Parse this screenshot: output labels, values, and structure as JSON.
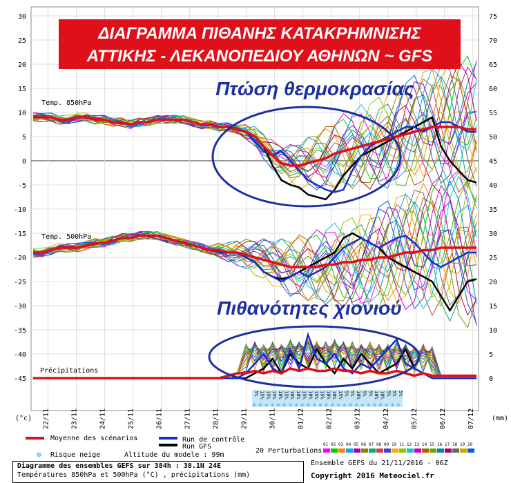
{
  "banner": {
    "line1": "ΔΙΑΓΡΑΜΜΑ ΠΙΘΑΝΗΣ ΚΑΤΑΚΡΗΜΝΙΣΗΣ",
    "line2": "ΑΤΤΙΚΗΣ - ΛΕΚΑΝΟΠΕΔΙΟΥ ΑΘΗΝΩΝ ~ GFS",
    "bg_color": "#e0101a"
  },
  "annotations": {
    "temp_drop": "Πτώση θερμοκρασίας",
    "snow_prob": "Πιθανότητες χιονιού",
    "color": "#1e2fa0"
  },
  "panel_labels": {
    "t850": "Temp. 850hPa",
    "t500": "Temp. 500hPa",
    "precip": "Précipitations"
  },
  "legend": {
    "mean": "Moyenne des scénarios",
    "control": "Run de contrôle",
    "gfs": "Run GFS",
    "snow_risk": "Risque neige",
    "altitude": "Altitude du modele : 99m",
    "perturbations": "20 Perturbations",
    "pert_ids": [
      "01",
      "02",
      "03",
      "04",
      "05",
      "06",
      "07",
      "08",
      "09",
      "10",
      "11",
      "12",
      "13",
      "14",
      "15",
      "16",
      "17",
      "18",
      "19",
      "20"
    ]
  },
  "footer": {
    "line1": "Diagramme des ensembles GEFS sur 384h : 38.1N 24E",
    "line2": "Températures 850hPa et 500hPa (°C) , précipitations (mm)",
    "ensemble": "Ensemble GEFS du 21/11/2016 - 06Z",
    "copyright": "Copyright 2016 Meteociel.fr"
  },
  "chart_data": {
    "type": "line",
    "left_axis_unit": "(°c)",
    "right_axis_unit": "(mm)",
    "left_ticks": [
      30,
      25,
      20,
      15,
      10,
      5,
      0,
      -5,
      -10,
      -15,
      -20,
      -25,
      -30,
      -35,
      -40,
      -45
    ],
    "right_ticks": [
      75,
      70,
      65,
      60,
      55,
      50,
      45,
      40,
      35,
      30,
      25,
      20,
      15,
      10,
      5,
      0
    ],
    "x_labels": [
      "22/11",
      "23/11",
      "24/11",
      "25/11",
      "26/11",
      "27/11",
      "28/11",
      "29/11",
      "30/11",
      "01/12",
      "02/12",
      "03/12",
      "04/12",
      "05/12",
      "06/12",
      "07/12"
    ],
    "snow_risk_pct": [
      "5%",
      "15%",
      "15%",
      "15%",
      "10%",
      "15%",
      "10%",
      "10%",
      "15%",
      "10%",
      "15%",
      "15%",
      "10%",
      "10%",
      "15%",
      "5%",
      "5%",
      "10%",
      "5%",
      "5%",
      "10%",
      "10%",
      "5%",
      "5%",
      "5%"
    ],
    "series": [
      {
        "name": "Moyenne des scénarios",
        "color": "#e0101a",
        "t850": [
          9,
          9,
          9,
          8.5,
          8.5,
          9,
          9,
          8.5,
          8.5,
          8,
          8,
          7.5,
          8,
          8,
          8.5,
          8.5,
          8.5,
          8.5,
          8,
          7.5,
          7.5,
          7,
          7,
          6.5,
          6,
          5,
          3,
          1,
          -0.5,
          -1,
          -1,
          -0.5,
          0,
          0.5,
          1.5,
          2,
          2.5,
          3,
          3.5,
          4,
          4.5,
          5,
          5.5,
          6,
          6.5,
          7,
          7,
          7,
          7,
          6.5,
          6.5
        ],
        "t500": [
          -19,
          -19,
          -18.5,
          -18,
          -18,
          -18,
          -17.5,
          -17,
          -17,
          -16.5,
          -16,
          -16,
          -15.5,
          -15.5,
          -15.5,
          -16,
          -16.5,
          -17,
          -17.5,
          -18,
          -18.5,
          -18.5,
          -19,
          -19,
          -19.5,
          -20,
          -20.5,
          -21,
          -21.5,
          -22,
          -22,
          -22,
          -22,
          -21.5,
          -21.5,
          -21,
          -21,
          -20.5,
          -20.5,
          -20,
          -20,
          -19.5,
          -19,
          -19,
          -18.5,
          -18.5,
          -18,
          -18,
          -18,
          -18,
          -18
        ],
        "precip": [
          0,
          0,
          0,
          0,
          0,
          0,
          0,
          0,
          0,
          0,
          0,
          0,
          0,
          0,
          0,
          0,
          0,
          0,
          0,
          0,
          0,
          0,
          0.5,
          1,
          1,
          1.5,
          1,
          1.5,
          1,
          2,
          1.5,
          2,
          1.5,
          1.5,
          2,
          1.5,
          1.5,
          1,
          1.5,
          1,
          1,
          1.5,
          1,
          0.5,
          1,
          0.5,
          0.5,
          0.5,
          0.5,
          0.5,
          0.5
        ]
      },
      {
        "name": "Run de contrôle",
        "color": "#1030d0",
        "t850": [
          9,
          9,
          9,
          8.5,
          8.5,
          9,
          9,
          8.5,
          8.5,
          8,
          8,
          7.5,
          8,
          8,
          8.5,
          8.5,
          8.5,
          8.5,
          8,
          7.5,
          7.5,
          7,
          7,
          6.5,
          6,
          4,
          2,
          1,
          2,
          0,
          -2,
          -4,
          -5,
          -6,
          -6.5,
          -6,
          -2,
          1,
          3,
          4,
          5,
          6,
          7,
          7,
          6,
          7,
          8,
          8,
          7,
          6,
          6
        ],
        "t500": [
          -19,
          -19,
          -18.5,
          -18,
          -18,
          -18,
          -17.5,
          -17,
          -17,
          -16.5,
          -16,
          -16,
          -15.5,
          -15.5,
          -15.5,
          -16,
          -16.5,
          -17,
          -17.5,
          -18,
          -18.5,
          -19,
          -19,
          -19,
          -20,
          -21,
          -23,
          -24,
          -25,
          -24,
          -23,
          -24,
          -23,
          -22,
          -20,
          -18,
          -17,
          -16,
          -17,
          -18,
          -17,
          -16,
          -15.5,
          -17,
          -19,
          -21,
          -22,
          -21,
          -20,
          -19,
          -19
        ],
        "precip": [
          0,
          0,
          0,
          0,
          0,
          0,
          0,
          0,
          0,
          0,
          0,
          0,
          0,
          0,
          0,
          0,
          0,
          0,
          0,
          0,
          0,
          0,
          0,
          0,
          1,
          3,
          5,
          2,
          1,
          6,
          2,
          9,
          4,
          3,
          5,
          2,
          1,
          3,
          2,
          4,
          6,
          8,
          3,
          2,
          1,
          0,
          0,
          0,
          0,
          0,
          0
        ]
      },
      {
        "name": "Run GFS",
        "color": "#000000",
        "t850": [
          9,
          9,
          9,
          8.5,
          8.5,
          9,
          9,
          8.5,
          8.5,
          8,
          8,
          7.5,
          8,
          8,
          8.5,
          8.5,
          8.5,
          8.5,
          8,
          7.5,
          7.5,
          7,
          7,
          6.5,
          6,
          5,
          3,
          -1,
          -4,
          -5,
          -5.5,
          -7,
          -7.5,
          -8,
          -6,
          -3,
          -1,
          1,
          2,
          3,
          4,
          5,
          6,
          7,
          8,
          9,
          3,
          0,
          -2,
          -4,
          -4.5
        ],
        "t500": [
          -19,
          -19,
          -18.5,
          -18,
          -18,
          -18,
          -17.5,
          -17,
          -17,
          -16.5,
          -16,
          -16,
          -15.5,
          -15.5,
          -15.5,
          -16,
          -16.5,
          -17,
          -17.5,
          -18,
          -18.5,
          -19,
          -19,
          -19,
          -20,
          -21,
          -23,
          -24,
          -24.5,
          -24,
          -23,
          -22,
          -21,
          -20,
          -19,
          -16,
          -15,
          -16,
          -17,
          -18,
          -20,
          -21,
          -22,
          -23,
          -24,
          -25,
          -28,
          -31,
          -28,
          -25,
          -24.5
        ],
        "precip": [
          0,
          0,
          0,
          0,
          0,
          0,
          0,
          0,
          0,
          0,
          0,
          0,
          0,
          0,
          0,
          0,
          0,
          0,
          0,
          0,
          0,
          0,
          0,
          0,
          0,
          1,
          2,
          4,
          1,
          5,
          3,
          2,
          6,
          3,
          1,
          4,
          2,
          5,
          3,
          1,
          2,
          3,
          6,
          2,
          1,
          0,
          0,
          0,
          0,
          0,
          0
        ]
      }
    ],
    "perturbation_colors": [
      "#ff00ff",
      "#00cc00",
      "#ff8800",
      "#00aaff",
      "#aa00aa",
      "#888800",
      "#00aa88",
      "#cc4444",
      "#4444cc",
      "#ffaa00",
      "#88cc00",
      "#00cccc",
      "#cc00cc",
      "#aa6600",
      "#66aa00",
      "#0088aa",
      "#aa0066",
      "#666666",
      "#ccaa00",
      "#0066cc"
    ]
  }
}
